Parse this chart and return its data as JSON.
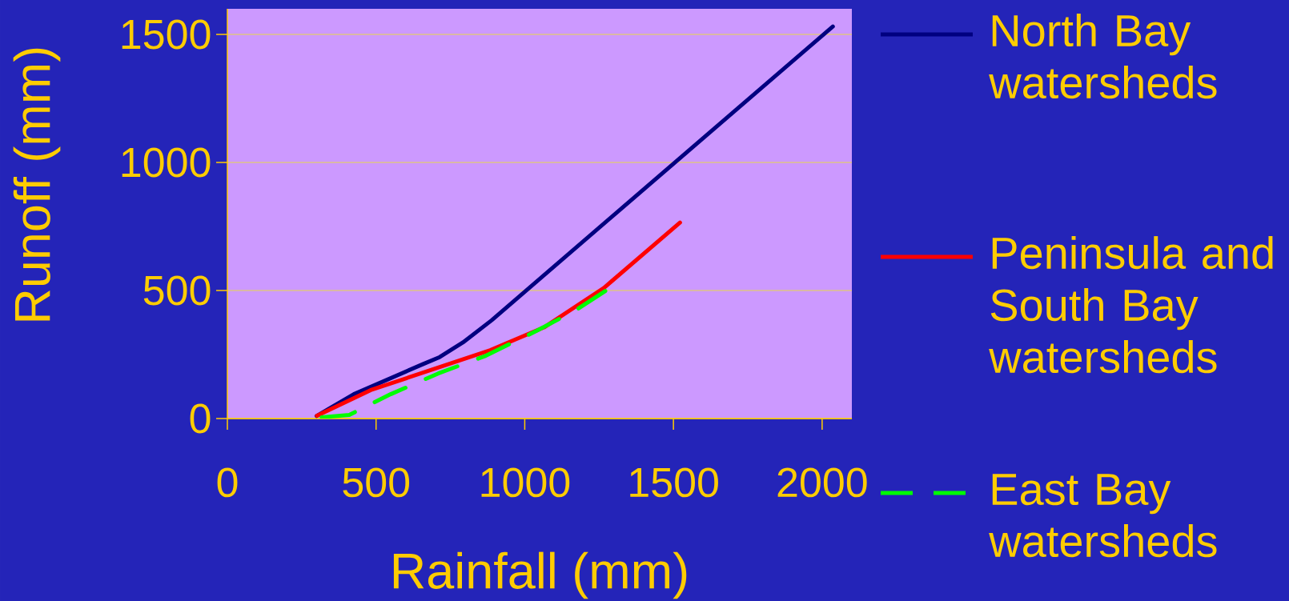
{
  "chart_data": {
    "type": "line",
    "xlabel": "Rainfall (mm)",
    "ylabel": "Runoff (mm)",
    "xlim": [
      0,
      2100
    ],
    "ylim": [
      0,
      1600
    ],
    "xticks": [
      0,
      500,
      1000,
      1500,
      2000
    ],
    "yticks": [
      0,
      500,
      1000,
      1500
    ],
    "grid": "y",
    "legend": "right",
    "series": [
      {
        "name": "North Bay watersheds",
        "color": "#000080",
        "x": [
          300,
          425,
          657,
          714,
          792,
          889,
          2036
        ],
        "values": [
          10,
          95,
          212,
          240,
          297,
          384,
          1531
        ]
      },
      {
        "name": "Peninsula and South Bay watersheds",
        "color": "#ff0000",
        "x": [
          301,
          410,
          482,
          884,
          1065,
          1266,
          1522
        ],
        "values": [
          11,
          71,
          111,
          267,
          356,
          510,
          765
        ]
      },
      {
        "name": "East Bay watersheds",
        "color": "#00ff00",
        "line_style": "dashed",
        "x": [
          317,
          410,
          451,
          549,
          709,
          869,
          1039,
          1173,
          1271
        ],
        "values": [
          5,
          14,
          38,
          95,
          176,
          245,
          342,
          424,
          498
        ]
      }
    ]
  }
}
